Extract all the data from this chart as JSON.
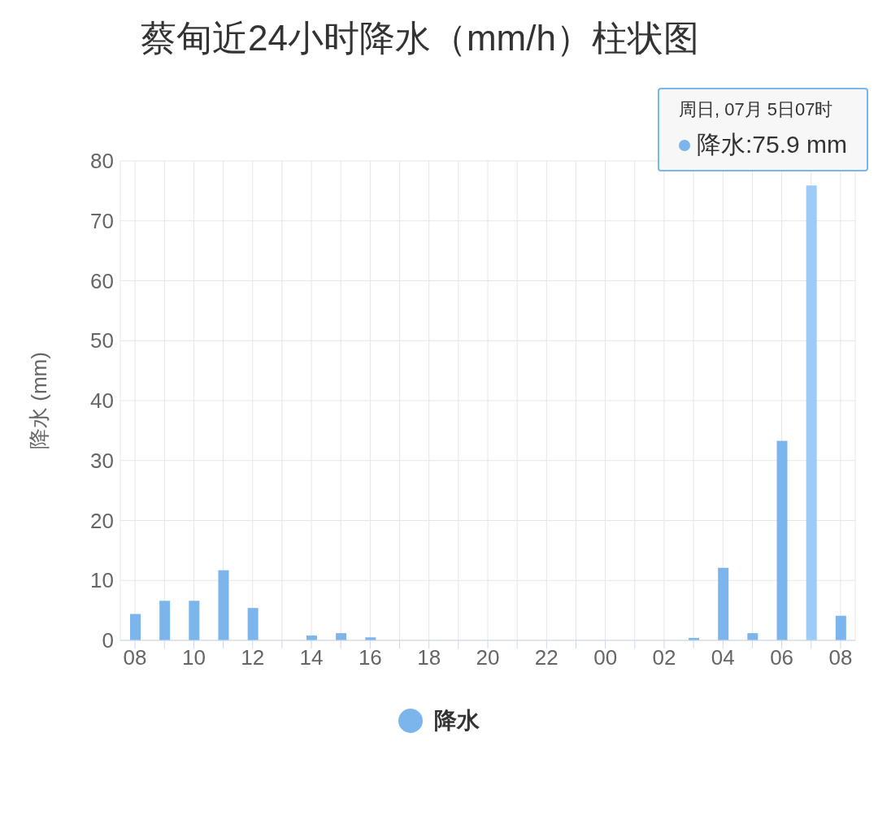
{
  "chart_data": {
    "type": "bar",
    "title": "蔡甸近24小时降水（mm/h）柱状图",
    "ylabel": "降水 (mm)",
    "categories": [
      "08",
      null,
      "10",
      null,
      "12",
      null,
      "14",
      null,
      "16",
      null,
      "18",
      null,
      "20",
      null,
      "22",
      null,
      "00",
      null,
      "02",
      null,
      "04",
      null,
      "06",
      null,
      "08"
    ],
    "series": [
      {
        "name": "降水",
        "color": "#7cb5ec",
        "colors": [
          "#7cb5ec",
          "#7cb5ec",
          "#7cb5ec",
          "#7cb5ec",
          "#7cb5ec",
          "#7cb5ec",
          "#7cb5ec",
          "#7cb5ec",
          "#7cb5ec",
          "#7cb5ec",
          "#7cb5ec",
          "#7cb5ec",
          "#7cb5ec",
          "#7cb5ec",
          "#7cb5ec",
          "#7cb5ec",
          "#7cb5ec",
          "#7cb5ec",
          "#7cb5ec",
          "#7cb5ec",
          "#7cb5ec",
          "#7cb5ec",
          "#7cb5ec",
          "#9ccbf5",
          "#7cb5ec"
        ],
        "values": [
          4.4,
          6.6,
          6.6,
          11.7,
          5.4,
          0,
          0.8,
          1.2,
          0.5,
          0,
          0,
          0,
          0,
          0,
          0,
          0,
          0,
          0,
          0,
          0.4,
          12.1,
          1.2,
          33.3,
          75.9,
          4.1
        ]
      }
    ],
    "ylim": [
      0,
      80
    ],
    "yticks": [
      0,
      10,
      20,
      30,
      40,
      50,
      60,
      70,
      80
    ],
    "grid": true,
    "legend": "bottom",
    "annotations": [
      "周日, 07月 5日07时",
      "降水:75.9 mm"
    ]
  }
}
